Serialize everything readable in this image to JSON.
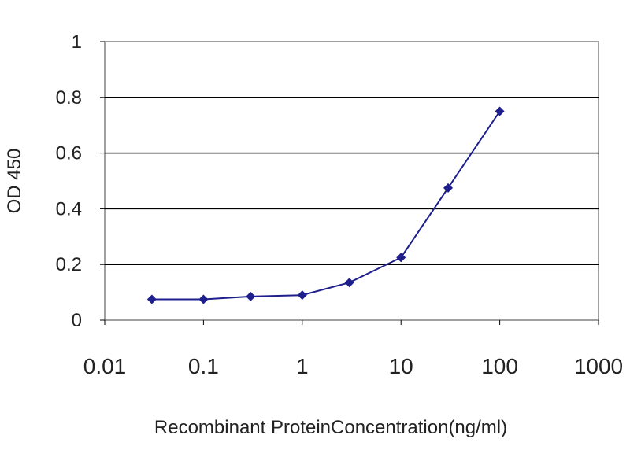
{
  "chart_data": {
    "type": "line",
    "title": "",
    "xlabel": "Recombinant ProteinConcentration(ng/ml)",
    "ylabel": "OD 450",
    "x_scale": "log",
    "xlim": [
      0.01,
      1000
    ],
    "ylim": [
      0,
      1
    ],
    "x_ticks": [
      "0.01",
      "0.1",
      "1",
      "10",
      "100",
      "1000"
    ],
    "y_ticks": [
      "0",
      "0.2",
      "0.4",
      "0.6",
      "0.8",
      "1"
    ],
    "grid": "horizontal",
    "legend": "none",
    "series": [
      {
        "x": [
          0.03,
          0.1,
          0.3,
          1,
          3,
          10,
          30,
          100
        ],
        "y": [
          0.075,
          0.075,
          0.085,
          0.09,
          0.135,
          0.225,
          0.475,
          0.75
        ]
      }
    ],
    "colors": {
      "series": "#1e1e8c",
      "plot_background": "#ffffff",
      "grid": "#000000",
      "frame": "#808080"
    }
  }
}
